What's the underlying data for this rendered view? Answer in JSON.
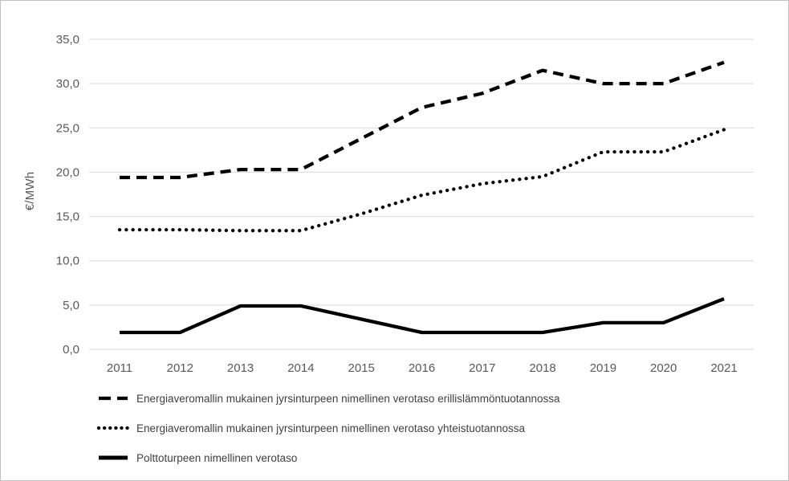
{
  "figure": {
    "background": "#ffffff",
    "border_color": "#bfbfbf"
  },
  "chart_data": {
    "type": "line",
    "title": "",
    "xlabel": "",
    "ylabel": "€/MWh",
    "ylim": [
      0,
      35
    ],
    "ytick_step": 5,
    "ytick_labels": [
      "0,0",
      "5,0",
      "10,0",
      "15,0",
      "20,0",
      "25,0",
      "30,0",
      "35,0"
    ],
    "categories": [
      "2011",
      "2012",
      "2013",
      "2014",
      "2015",
      "2016",
      "2017",
      "2018",
      "2019",
      "2020",
      "2021"
    ],
    "grid": "horizontal",
    "grid_color": "#d9d9d9",
    "tick_label_color": "#595959",
    "line_color": "#000000",
    "legend_position": "bottom-left",
    "series": [
      {
        "name": "Energiaveromallin mukainen jyrsinturpeen nimellinen verotaso erillislämmöntuotannossa",
        "style": "dashed",
        "color": "#000000",
        "values": [
          19.4,
          19.4,
          20.3,
          20.3,
          23.8,
          27.3,
          28.9,
          31.5,
          30.0,
          30.0,
          32.4
        ]
      },
      {
        "name": "Energiaveromallin mukainen jyrsinturpeen nimellinen verotaso yhteistuotannossa",
        "style": "dotted",
        "color": "#000000",
        "values": [
          13.5,
          13.5,
          13.4,
          13.4,
          15.3,
          17.4,
          18.7,
          19.5,
          22.3,
          22.3,
          24.8
        ]
      },
      {
        "name": "Polttoturpeen nimellinen verotaso",
        "style": "solid",
        "color": "#000000",
        "values": [
          1.9,
          1.9,
          4.9,
          4.9,
          3.4,
          1.9,
          1.9,
          1.9,
          3.0,
          3.0,
          5.7
        ]
      }
    ]
  }
}
